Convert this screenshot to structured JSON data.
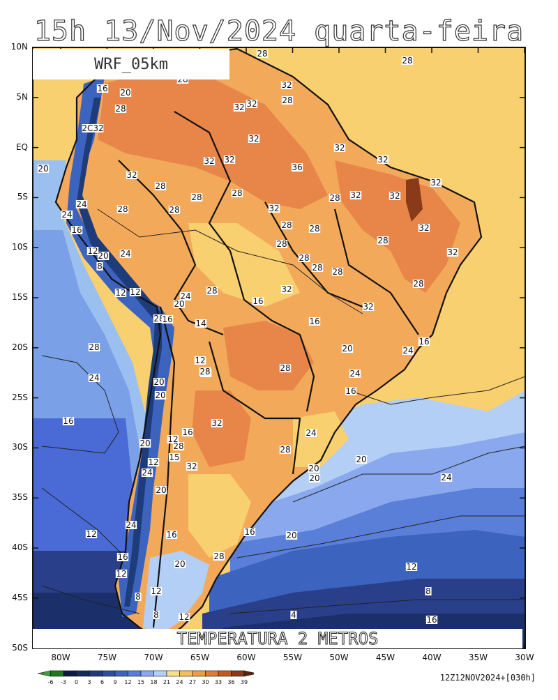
{
  "title": "15h  13/Nov/2024  quarta-feira",
  "model_name": "WRF_05km",
  "variable_label": "TEMPERATURA 2 METROS",
  "run_label": "12Z12NOV2024+[030h]",
  "lat_labels": [
    "10N",
    "5N",
    "EQ",
    "5S",
    "10S",
    "15S",
    "20S",
    "25S",
    "30S",
    "35S",
    "40S",
    "45S",
    "50S"
  ],
  "lon_labels": [
    "80W",
    "75W",
    "70W",
    "65W",
    "60W",
    "55W",
    "50W",
    "45W",
    "40W",
    "35W",
    "30W"
  ],
  "legend": {
    "ticks": [
      "-6",
      "-3",
      "0",
      "3",
      "6",
      "9",
      "12",
      "15",
      "18",
      "21",
      "24",
      "27",
      "30",
      "33",
      "36",
      "39"
    ],
    "colors": [
      "#3a9e3a",
      "#1f7a1f",
      "#0b1a44",
      "#142a5c",
      "#1e3b7a",
      "#2c4f9c",
      "#3c63bd",
      "#5a7fd9",
      "#8aa8ee",
      "#b4cff5",
      "#f8e08a",
      "#f5c05a",
      "#ef9c45",
      "#e07a35",
      "#c05a25",
      "#8a3a18",
      "#5c2510"
    ]
  },
  "colors": {
    "land_hot": "#e8864a",
    "land_warm": "#f2aa5a",
    "land_mild": "#f8d070",
    "ocean_warm": "#f8d070",
    "ocean_cool": "#9bc0f0",
    "ocean_cold": "#4a6ad6",
    "ocean_colder": "#2a3f8a",
    "ocean_coldest": "#14244f"
  },
  "contour_labels": [
    "28",
    "28",
    "28",
    "32",
    "32",
    "16",
    "20",
    "28",
    "32",
    "28",
    "32",
    "2C32",
    "32",
    "20",
    "32",
    "32",
    "32",
    "32",
    "36",
    "28",
    "32",
    "28",
    "32",
    "28",
    "28",
    "32",
    "32",
    "28",
    "24",
    "24",
    "28",
    "16",
    "28",
    "28",
    "32",
    "12",
    "28",
    "8",
    "20",
    "24",
    "28",
    "28",
    "28",
    "28",
    "28",
    "32",
    "12",
    "12",
    "24",
    "20",
    "28",
    "28",
    "16",
    "14",
    "16",
    "32",
    "28",
    "16",
    "32",
    "12",
    "28",
    "28",
    "20",
    "24",
    "24",
    "16",
    "20",
    "28",
    "16",
    "20",
    "24",
    "12",
    "20",
    "16",
    "32",
    "28",
    "15",
    "28",
    "24",
    "20",
    "20",
    "32",
    "20",
    "24",
    "16",
    "12",
    "20",
    "24",
    "16",
    "16",
    "28",
    "12",
    "20",
    "20",
    "16",
    "12",
    "12",
    "8",
    "12",
    "8",
    "4",
    "16",
    "8",
    "12",
    "24"
  ]
}
